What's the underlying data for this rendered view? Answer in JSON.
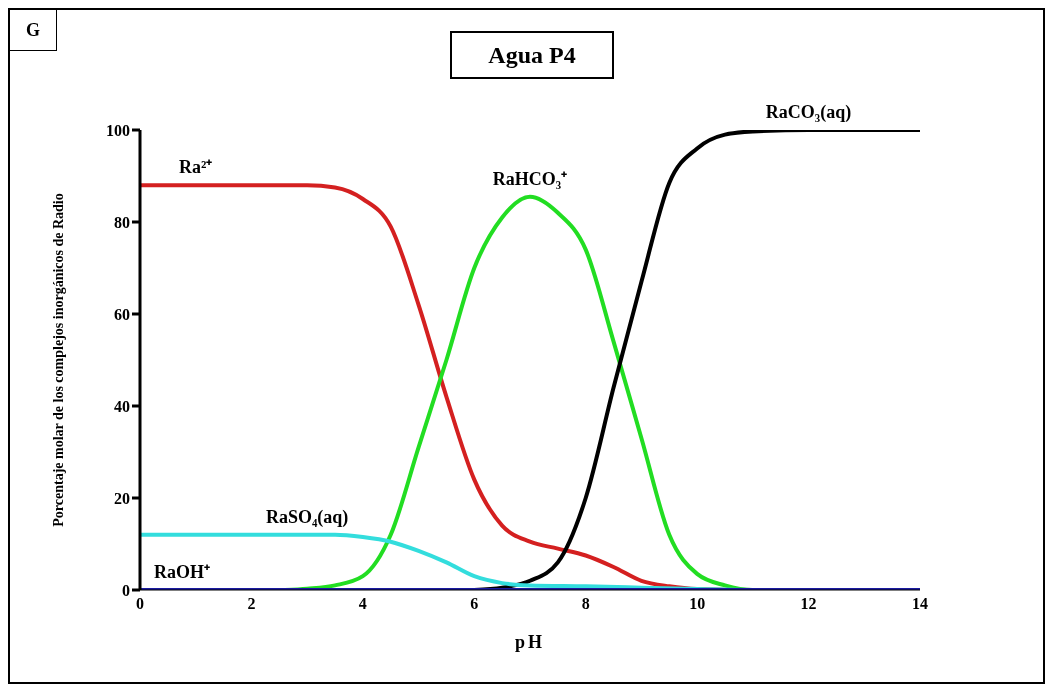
{
  "chart_data": {
    "type": "line",
    "title": "Agua P4",
    "annotations": [
      "G"
    ],
    "xlabel": "pH",
    "ylabel": "Porcentaje molar de los complejos inorgánicos de Radio",
    "xlim": [
      0,
      14
    ],
    "xticks": [
      0,
      2,
      4,
      6,
      8,
      10,
      12,
      14
    ],
    "ylim": [
      0,
      100
    ],
    "yticks": [
      0,
      20,
      40,
      60,
      80,
      100
    ],
    "grid": false,
    "legend": false,
    "marker": "none",
    "line_style": "solid",
    "series": [
      {
        "name": "Ra²⁺",
        "color": "#d42020",
        "x": [
          0,
          1,
          2,
          3,
          3.5,
          4,
          4.5,
          5,
          5.5,
          6,
          6.5,
          7,
          7.5,
          8,
          8.5,
          9,
          9.5,
          10,
          11,
          14
        ],
        "values": [
          88,
          88,
          88,
          88,
          87.5,
          85,
          79,
          62,
          42,
          24,
          14,
          10.5,
          9,
          7.5,
          5,
          2,
          0.8,
          0.2,
          0,
          0
        ]
      },
      {
        "name": "RaHCO₃⁺",
        "color": "#22dd22",
        "x": [
          2.6,
          3,
          3.5,
          4,
          4.5,
          5,
          5.5,
          6,
          6.5,
          7,
          7.5,
          8,
          8.5,
          9,
          9.5,
          10,
          10.5,
          11,
          14
        ],
        "values": [
          0,
          0.3,
          1,
          3,
          12,
          31,
          50,
          70,
          81,
          85.5,
          82,
          74,
          54,
          33,
          12,
          3.5,
          1,
          0,
          0
        ]
      },
      {
        "name": "RaCO₃(aq)",
        "color": "#000000",
        "x": [
          6,
          6.5,
          7,
          7.5,
          8,
          8.5,
          9,
          9.5,
          10,
          10.5,
          11,
          12,
          14
        ],
        "values": [
          0,
          0.5,
          2,
          6,
          20,
          44,
          67,
          88.5,
          96,
          99,
          99.7,
          100,
          100
        ]
      },
      {
        "name": "RaSO₄(aq)",
        "color": "#33dddd",
        "x": [
          0,
          3,
          3.5,
          4,
          4.5,
          5,
          5.5,
          6,
          6.5,
          7,
          8,
          9,
          10,
          11,
          14
        ],
        "values": [
          12,
          12,
          12,
          11.5,
          10.5,
          8.5,
          6,
          3,
          1.5,
          1,
          0.8,
          0.5,
          0.2,
          0,
          0
        ]
      },
      {
        "name": "RaOH⁺",
        "color": "#1a1aa0",
        "x": [
          0,
          14
        ],
        "values": [
          0,
          0
        ]
      }
    ]
  }
}
